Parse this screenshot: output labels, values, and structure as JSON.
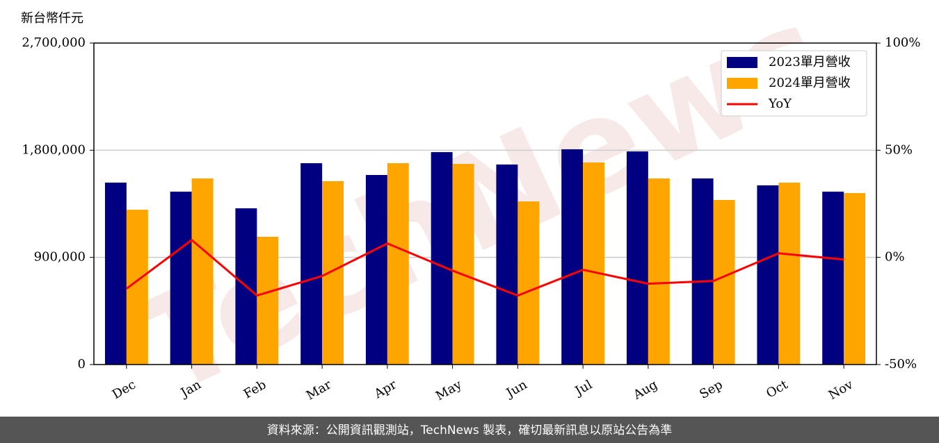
{
  "chart_data": {
    "type": "bar",
    "y_unit_label": "新台幣仟元",
    "watermark": "TechNews",
    "categories": [
      "Dec",
      "Jan",
      "Feb",
      "Mar",
      "Apr",
      "May",
      "Jun",
      "Jul",
      "Aug",
      "Sep",
      "Oct",
      "Nov"
    ],
    "series": [
      {
        "name": "2023單月營收",
        "color": "#000080",
        "type": "bar",
        "values": [
          1528000,
          1452000,
          1312000,
          1691000,
          1592000,
          1784000,
          1680000,
          1808000,
          1790000,
          1563000,
          1505000,
          1452000
        ]
      },
      {
        "name": "2024單月營收",
        "color": "#ffa500",
        "type": "bar",
        "values": [
          1300000,
          1563000,
          1073000,
          1540000,
          1691000,
          1685000,
          1370000,
          1697000,
          1563000,
          1382000,
          1528000,
          1440000
        ]
      },
      {
        "name": "YoY",
        "color": "#ff0000",
        "type": "line",
        "axis": "y2",
        "values": [
          -14.6,
          8.1,
          -17.8,
          -8.7,
          6.5,
          -6.2,
          -17.8,
          -5.8,
          -12.3,
          -11,
          1.9,
          -1.0
        ]
      }
    ],
    "ylim": [
      0,
      2700000
    ],
    "yticks": [
      0,
      {
        "value": 900000,
        "label": "900,000"
      },
      {
        "value": 1800000,
        "label": "1,800,000"
      },
      {
        "value": 2700000,
        "label": "2,700,000"
      }
    ],
    "y2lim": [
      -50,
      100
    ],
    "y2ticks": [
      {
        "value": -50,
        "label": "-50%"
      },
      {
        "value": 0,
        "label": "0%"
      },
      {
        "value": 50,
        "label": "50%"
      },
      {
        "value": 100,
        "label": "100%"
      }
    ],
    "grid": true,
    "legend": "upper right",
    "footer": "資料來源：公開資訊觀測站，TechNews 製表，確切最新訊息以原站公告為準"
  }
}
